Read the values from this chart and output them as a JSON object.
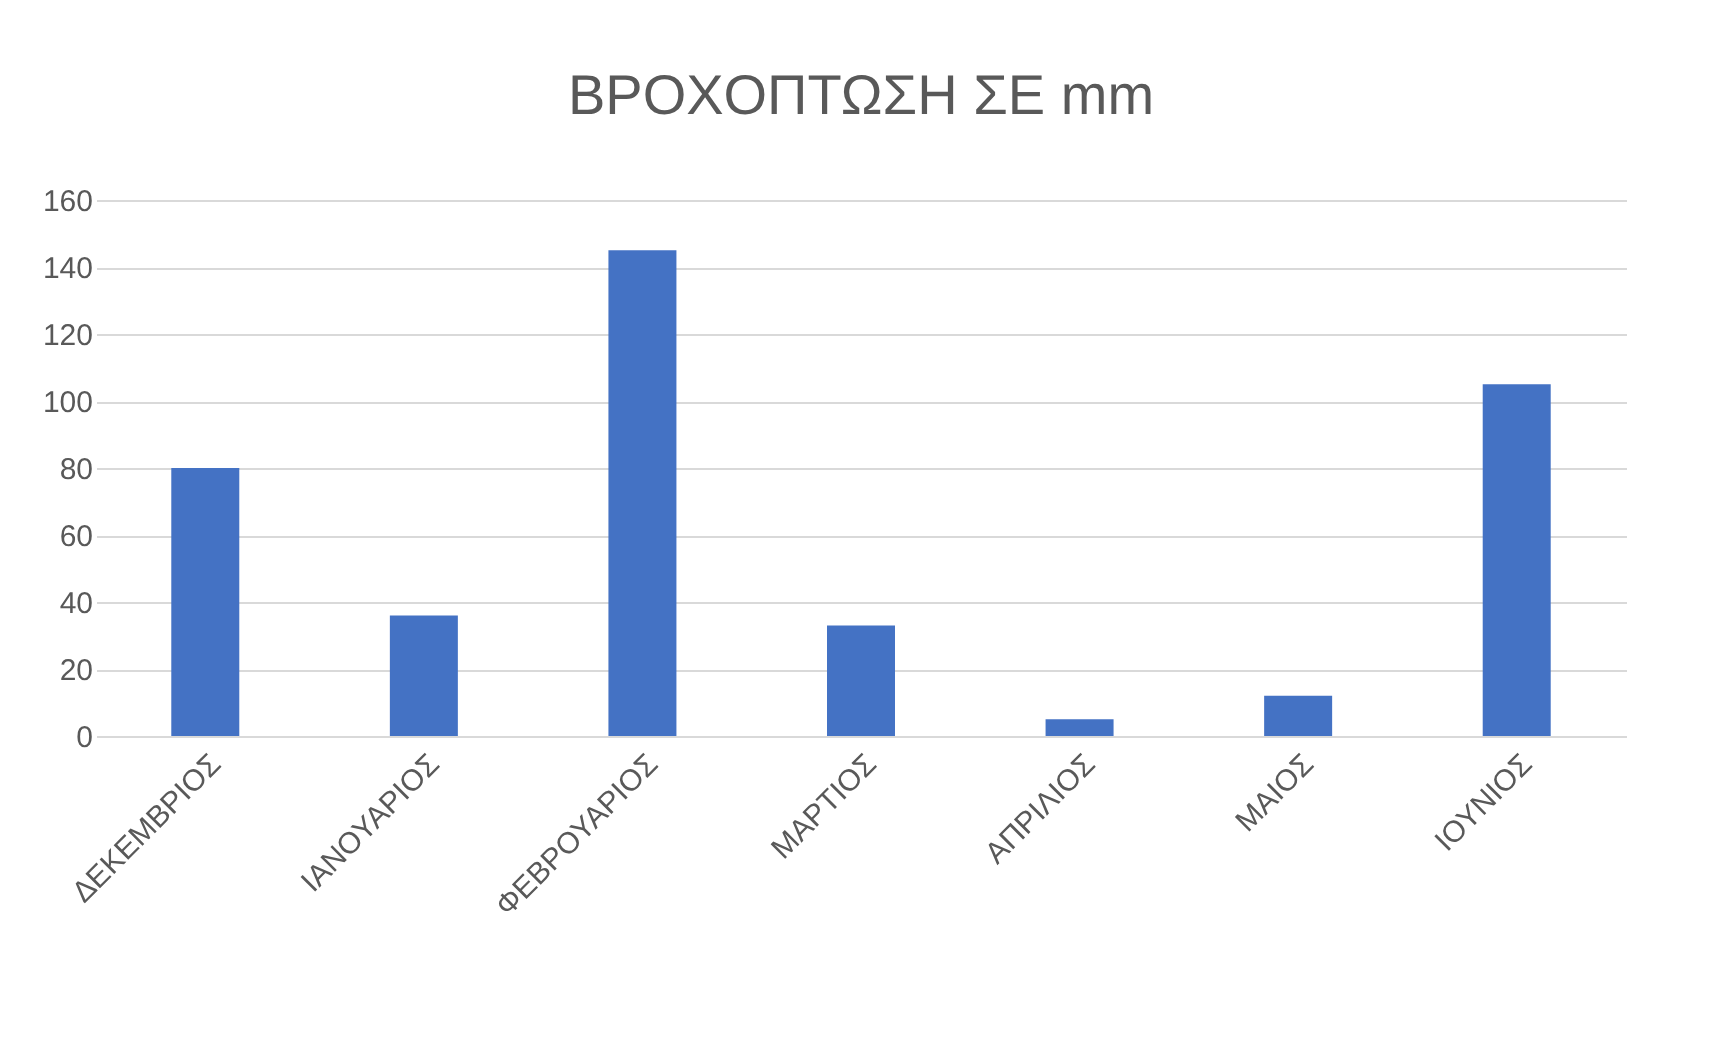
{
  "chart_data": {
    "type": "bar",
    "title": "ΒΡΟΧΟΠΤΩΣΗ ΣΕ mm",
    "categories": [
      "ΔΕΚΕΜΒΡΙΟΣ",
      "ΙΑΝΟΥΑΡΙΟΣ",
      "ΦΕΒΡΟΥΑΡΙΟΣ",
      "ΜΑΡΤΙΟΣ",
      "ΑΠΡΙΛΙΟΣ",
      "ΜΑΙΟΣ",
      "ΙΟΥΝΙΟΣ"
    ],
    "values": [
      80,
      36,
      145,
      33,
      5,
      12,
      105
    ],
    "color": "#4472c4",
    "ylim": [
      0,
      160
    ],
    "yticks": [
      0,
      20,
      40,
      60,
      80,
      100,
      120,
      140,
      160
    ],
    "grid": "y"
  }
}
